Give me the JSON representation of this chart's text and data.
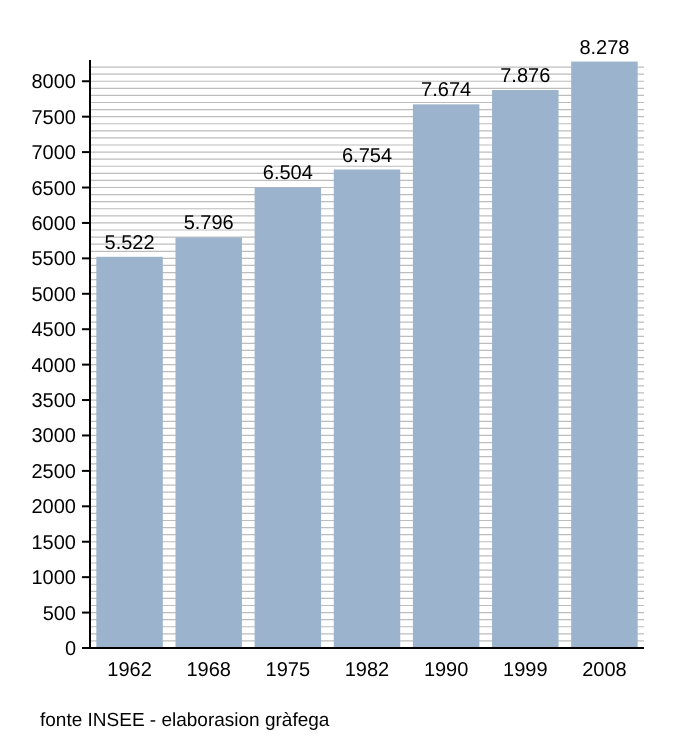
{
  "chart_data": {
    "type": "bar",
    "categories": [
      "1962",
      "1968",
      "1975",
      "1982",
      "1990",
      "1999",
      "2008"
    ],
    "values": [
      5522,
      5796,
      6504,
      6754,
      7674,
      7876,
      8278
    ],
    "value_labels": [
      "5.522",
      "5.796",
      "6.504",
      "6.754",
      "7.674",
      "7.876",
      "8.278"
    ],
    "color": "#9bb3cc",
    "ylim": [
      0,
      8300
    ],
    "yticks": [
      0,
      {
        "value": 100,
        "label": null
      },
      {
        "value": 200,
        "label": null
      },
      {
        "value": 300,
        "label": null
      },
      {
        "value": 400,
        "label": null
      },
      500,
      {
        "value": 600,
        "label": null
      },
      {
        "value": 700,
        "label": null
      },
      {
        "value": 800,
        "label": null
      },
      {
        "value": 900,
        "label": null
      },
      1000,
      {
        "value": 1100,
        "label": null
      },
      {
        "value": 1200,
        "label": null
      },
      {
        "value": 1300,
        "label": null
      },
      {
        "value": 1400,
        "label": null
      },
      1500,
      {
        "value": 1600,
        "label": null
      },
      {
        "value": 1700,
        "label": null
      },
      {
        "value": 1800,
        "label": null
      },
      {
        "value": 1900,
        "label": null
      },
      2000,
      {
        "value": 2100,
        "label": null
      },
      {
        "value": 2200,
        "label": null
      },
      {
        "value": 2300,
        "label": null
      },
      {
        "value": 2400,
        "label": null
      },
      2500,
      {
        "value": 2600,
        "label": null
      },
      {
        "value": 2700,
        "label": null
      },
      {
        "value": 2800,
        "label": null
      },
      {
        "value": 2900,
        "label": null
      },
      3000,
      {
        "value": 3100,
        "label": null
      },
      {
        "value": 3200,
        "label": null
      },
      {
        "value": 3300,
        "label": null
      },
      {
        "value": 3400,
        "label": null
      },
      3500,
      {
        "value": 3600,
        "label": null
      },
      {
        "value": 3700,
        "label": null
      },
      {
        "value": 3800,
        "label": null
      },
      {
        "value": 3900,
        "label": null
      },
      4000,
      {
        "value": 4100,
        "label": null
      },
      {
        "value": 4200,
        "label": null
      },
      {
        "value": 4300,
        "label": null
      },
      {
        "value": 4400,
        "label": null
      },
      4500,
      {
        "value": 4600,
        "label": null
      },
      {
        "value": 4700,
        "label": null
      },
      {
        "value": 4800,
        "label": null
      },
      {
        "value": 4900,
        "label": null
      },
      5000,
      {
        "value": 5100,
        "label": null
      },
      {
        "value": 5200,
        "label": null
      },
      {
        "value": 5300,
        "label": null
      },
      {
        "value": 5400,
        "label": null
      },
      5500,
      {
        "value": 5600,
        "label": null
      },
      {
        "value": 5700,
        "label": null
      },
      {
        "value": 5800,
        "label": null
      },
      {
        "value": 5900,
        "label": null
      },
      6000,
      {
        "value": 6100,
        "label": null
      },
      {
        "value": 6200,
        "label": null
      },
      {
        "value": 6300,
        "label": null
      },
      {
        "value": 6400,
        "label": null
      },
      6500,
      {
        "value": 6600,
        "label": null
      },
      {
        "value": 6700,
        "label": null
      },
      {
        "value": 6800,
        "label": null
      },
      {
        "value": 6900,
        "label": null
      },
      7000,
      {
        "value": 7100,
        "label": null
      },
      {
        "value": 7200,
        "label": null
      },
      {
        "value": 7300,
        "label": null
      },
      {
        "value": 7400,
        "label": null
      },
      7500,
      {
        "value": 7600,
        "label": null
      },
      {
        "value": 7700,
        "label": null
      },
      {
        "value": 7800,
        "label": null
      },
      {
        "value": 7900,
        "label": null
      },
      8000,
      {
        "value": 8100,
        "label": null
      },
      {
        "value": 8200,
        "label": null
      }
    ],
    "grid": "y",
    "annotations": [
      "fonte INSEE - elaborasion gràfega"
    ]
  }
}
